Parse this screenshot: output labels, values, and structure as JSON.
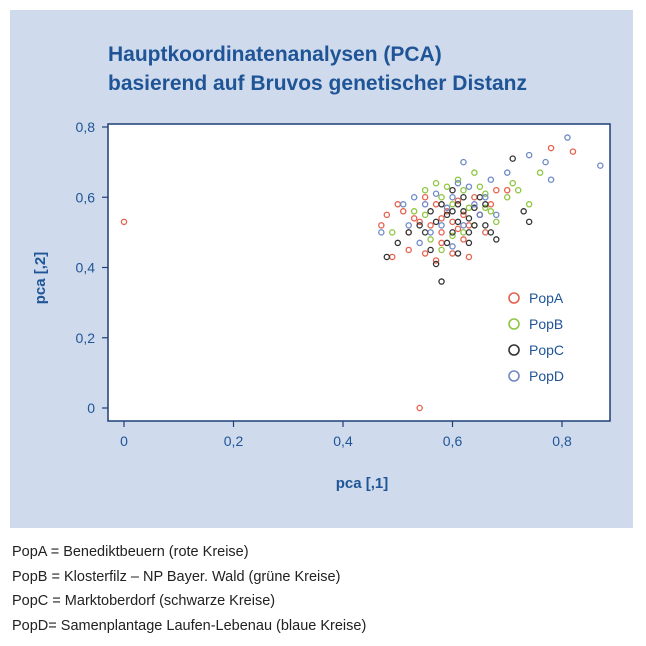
{
  "chart_data": {
    "type": "scatter",
    "title": "Hauptkoordinatenanalysen (PCA)",
    "subtitle": "basierend auf Bruvos genetischer Distanz",
    "xlabel": "pca [,1]",
    "ylabel": "pca [,2]",
    "xlim": [
      -0.04,
      0.9
    ],
    "ylim": [
      -0.04,
      0.82
    ],
    "xticks": [
      "0",
      "0,2",
      "0,4",
      "0,6",
      "0,8"
    ],
    "yticks": [
      "0",
      "0,2",
      "0,4",
      "0,6",
      "0,8"
    ],
    "grid": false,
    "legend_position": "right",
    "series": [
      {
        "name": "PopA",
        "color": "#e8604c",
        "points": [
          [
            0,
            0.53
          ],
          [
            0.54,
            0
          ],
          [
            0.47,
            0.52
          ],
          [
            0.48,
            0.55
          ],
          [
            0.5,
            0.58
          ],
          [
            0.51,
            0.56
          ],
          [
            0.52,
            0.5
          ],
          [
            0.53,
            0.54
          ],
          [
            0.55,
            0.6
          ],
          [
            0.56,
            0.52
          ],
          [
            0.57,
            0.58
          ],
          [
            0.58,
            0.5
          ],
          [
            0.58,
            0.47
          ],
          [
            0.59,
            0.56
          ],
          [
            0.6,
            0.53
          ],
          [
            0.61,
            0.59
          ],
          [
            0.62,
            0.48
          ],
          [
            0.62,
            0.55
          ],
          [
            0.63,
            0.52
          ],
          [
            0.64,
            0.6
          ],
          [
            0.65,
            0.55
          ],
          [
            0.66,
            0.5
          ],
          [
            0.67,
            0.58
          ],
          [
            0.68,
            0.62
          ],
          [
            0.52,
            0.45
          ],
          [
            0.55,
            0.44
          ],
          [
            0.57,
            0.42
          ],
          [
            0.6,
            0.44
          ],
          [
            0.63,
            0.43
          ],
          [
            0.49,
            0.43
          ],
          [
            0.78,
            0.74
          ],
          [
            0.82,
            0.73
          ],
          [
            0.7,
            0.62
          ],
          [
            0.54,
            0.53
          ],
          [
            0.58,
            0.54
          ],
          [
            0.61,
            0.51
          ]
        ]
      },
      {
        "name": "PopB",
        "color": "#8dc63f",
        "points": [
          [
            0.49,
            0.5
          ],
          [
            0.53,
            0.56
          ],
          [
            0.55,
            0.62
          ],
          [
            0.57,
            0.64
          ],
          [
            0.58,
            0.6
          ],
          [
            0.6,
            0.58
          ],
          [
            0.61,
            0.65
          ],
          [
            0.62,
            0.62
          ],
          [
            0.63,
            0.57
          ],
          [
            0.64,
            0.67
          ],
          [
            0.65,
            0.63
          ],
          [
            0.66,
            0.61
          ],
          [
            0.67,
            0.56
          ],
          [
            0.68,
            0.53
          ],
          [
            0.7,
            0.6
          ],
          [
            0.71,
            0.64
          ],
          [
            0.72,
            0.62
          ],
          [
            0.74,
            0.58
          ],
          [
            0.76,
            0.67
          ],
          [
            0.56,
            0.48
          ],
          [
            0.58,
            0.45
          ],
          [
            0.6,
            0.49
          ],
          [
            0.62,
            0.5
          ],
          [
            0.64,
            0.52
          ],
          [
            0.55,
            0.55
          ],
          [
            0.59,
            0.63
          ],
          [
            0.66,
            0.57
          ]
        ]
      },
      {
        "name": "PopC",
        "color": "#333333",
        "points": [
          [
            0.48,
            0.43
          ],
          [
            0.5,
            0.47
          ],
          [
            0.52,
            0.5
          ],
          [
            0.54,
            0.52
          ],
          [
            0.55,
            0.5
          ],
          [
            0.56,
            0.56
          ],
          [
            0.57,
            0.41
          ],
          [
            0.57,
            0.53
          ],
          [
            0.58,
            0.36
          ],
          [
            0.58,
            0.58
          ],
          [
            0.59,
            0.55
          ],
          [
            0.6,
            0.5
          ],
          [
            0.6,
            0.56
          ],
          [
            0.61,
            0.58
          ],
          [
            0.61,
            0.53
          ],
          [
            0.62,
            0.56
          ],
          [
            0.62,
            0.6
          ],
          [
            0.63,
            0.54
          ],
          [
            0.63,
            0.5
          ],
          [
            0.64,
            0.57
          ],
          [
            0.64,
            0.52
          ],
          [
            0.65,
            0.55
          ],
          [
            0.65,
            0.6
          ],
          [
            0.66,
            0.52
          ],
          [
            0.67,
            0.5
          ],
          [
            0.68,
            0.48
          ],
          [
            0.71,
            0.71
          ],
          [
            0.73,
            0.56
          ],
          [
            0.74,
            0.53
          ],
          [
            0.56,
            0.45
          ],
          [
            0.59,
            0.47
          ],
          [
            0.61,
            0.44
          ],
          [
            0.63,
            0.47
          ],
          [
            0.66,
            0.58
          ],
          [
            0.6,
            0.62
          ]
        ]
      },
      {
        "name": "PopD",
        "color": "#6e89c6",
        "points": [
          [
            0.47,
            0.5
          ],
          [
            0.51,
            0.58
          ],
          [
            0.53,
            0.6
          ],
          [
            0.55,
            0.58
          ],
          [
            0.57,
            0.61
          ],
          [
            0.59,
            0.57
          ],
          [
            0.6,
            0.6
          ],
          [
            0.61,
            0.64
          ],
          [
            0.62,
            0.7
          ],
          [
            0.63,
            0.63
          ],
          [
            0.64,
            0.58
          ],
          [
            0.65,
            0.55
          ],
          [
            0.66,
            0.6
          ],
          [
            0.67,
            0.65
          ],
          [
            0.7,
            0.67
          ],
          [
            0.74,
            0.72
          ],
          [
            0.77,
            0.7
          ],
          [
            0.78,
            0.65
          ],
          [
            0.81,
            0.77
          ],
          [
            0.87,
            0.69
          ],
          [
            0.52,
            0.52
          ],
          [
            0.56,
            0.5
          ],
          [
            0.58,
            0.52
          ],
          [
            0.62,
            0.52
          ],
          [
            0.68,
            0.55
          ],
          [
            0.54,
            0.47
          ],
          [
            0.6,
            0.46
          ]
        ]
      }
    ]
  },
  "legend": [
    "PopA",
    "PopB",
    "PopC",
    "PopD"
  ],
  "caption": [
    "PopA = Benediktbeuern (rote Kreise)",
    "PopB = Klosterfilz – NP Bayer. Wald (grüne Kreise)",
    "PopC = Marktoberdorf (schwarze Kreise)",
    "PopD= Samenplantage Laufen-Lebenau (blaue Kreise)"
  ]
}
